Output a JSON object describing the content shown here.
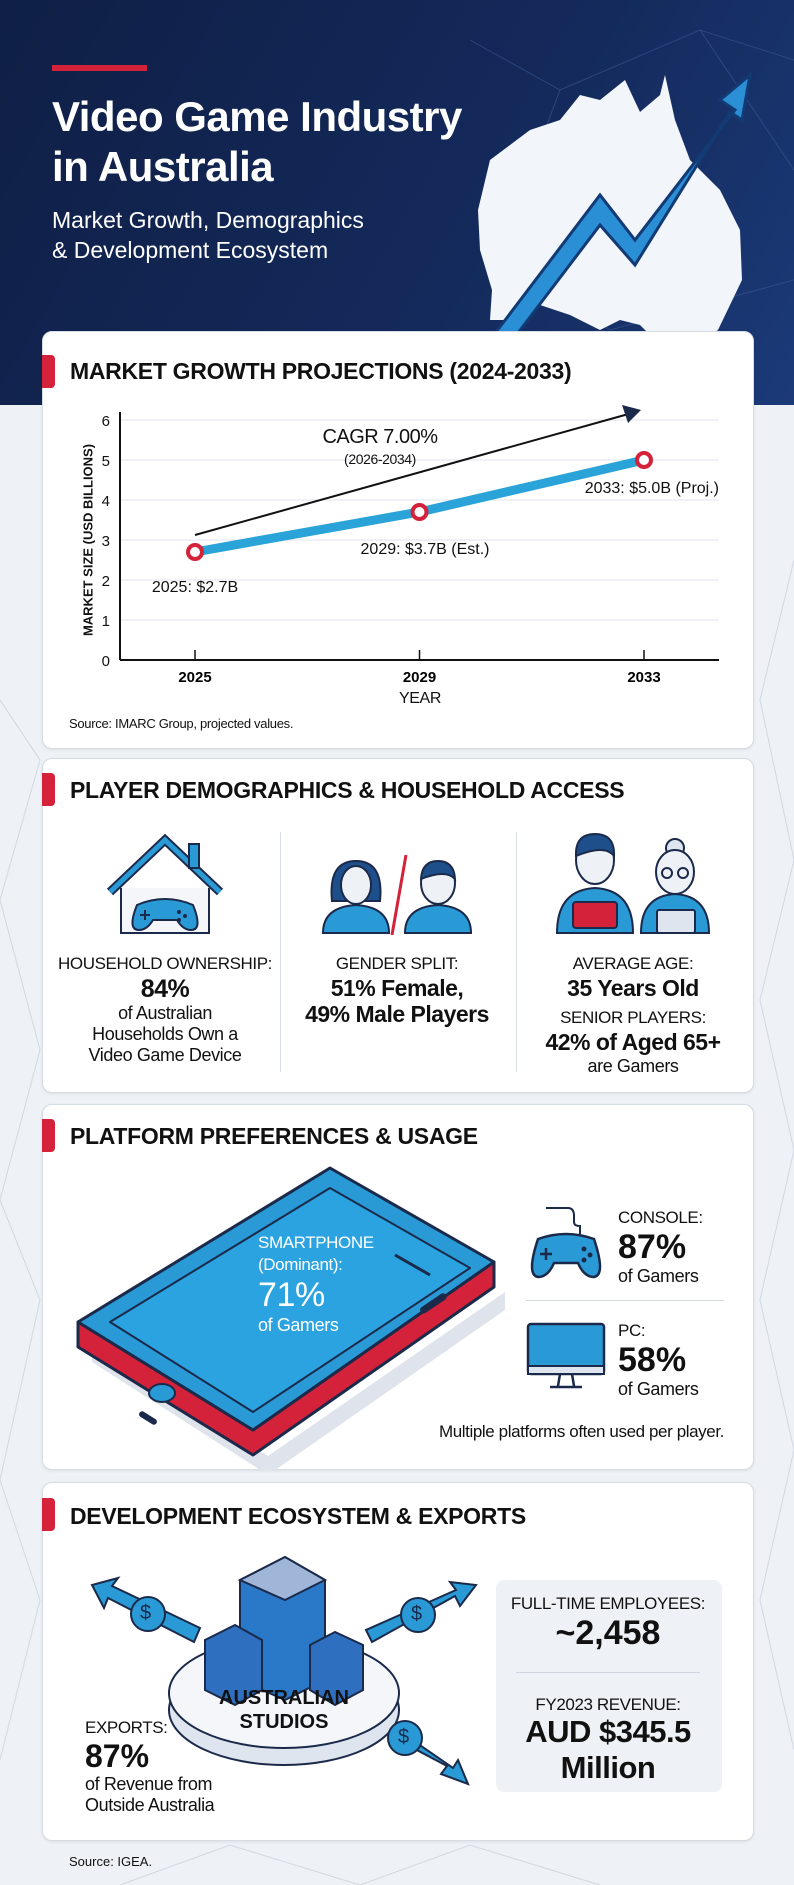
{
  "header": {
    "title_line1": "Video Game Industry",
    "title_line2": "in Australia",
    "subtitle_line1": "Market Growth, Demographics",
    "subtitle_line2": "& Development Ecosystem"
  },
  "colors": {
    "navy": "#132a5c",
    "accent_red": "#d3223a",
    "accent_blue": "#1e9ad6",
    "outline": "#1b2a4a"
  },
  "market": {
    "title": "MARKET GROWTH PROJECTIONS (2024-2033)",
    "source": "Source: IMARC Group, projected values."
  },
  "chart_data": {
    "type": "line",
    "title": "MARKET GROWTH PROJECTIONS (2024-2033)",
    "xlabel": "YEAR",
    "ylabel": "MARKET SIZE (USD BILLIONS)",
    "x": [
      2025,
      2029,
      2033
    ],
    "values": [
      2.7,
      3.7,
      5.0
    ],
    "point_labels": [
      "2025: $2.7B",
      "2029: $3.7B (Est.)",
      "2033: $5.0B (Proj.)"
    ],
    "xticks": [
      "2025",
      "2029",
      "2033"
    ],
    "yticks": [
      0,
      1,
      2,
      3,
      4,
      5,
      6
    ],
    "ylim": [
      0,
      6
    ],
    "grid": true,
    "annotation": {
      "label": "CAGR 7.00%",
      "sublabel": "(2026-2034)"
    },
    "line_color": "#2aa3d8",
    "marker_color": "#d3223a"
  },
  "demographics": {
    "title": "PLAYER DEMOGRAPHICS & HOUSEHOLD ACCESS",
    "household": {
      "label": "HOUSEHOLD OWNERSHIP:",
      "value": "84%",
      "desc1": "of Australian",
      "desc2": "Households Own a",
      "desc3": "Video Game Device"
    },
    "gender": {
      "label": "GENDER SPLIT:",
      "line1": "51% Female,",
      "line2": "49% Male Players"
    },
    "age": {
      "label": "AVERAGE AGE:",
      "value": "35 Years Old",
      "senior_label": "SENIOR PLAYERS:",
      "senior_value": "42% of Aged 65+",
      "senior_desc": "are Gamers"
    }
  },
  "platforms": {
    "title": "PLATFORM PREFERENCES & USAGE",
    "smartphone": {
      "label1": "SMARTPHONE",
      "label2": "(Dominant):",
      "value": "71%",
      "desc": "of Gamers"
    },
    "console": {
      "label": "CONSOLE:",
      "value": "87%",
      "desc": "of Gamers"
    },
    "pc": {
      "label": "PC:",
      "value": "58%",
      "desc": "of Gamers"
    },
    "note": "Multiple platforms often used per player."
  },
  "development": {
    "title": "DEVELOPMENT ECOSYSTEM & EXPORTS",
    "studios_line1": "AUSTRALIAN",
    "studios_line2": "STUDIOS",
    "exports": {
      "label": "EXPORTS:",
      "value": "87%",
      "desc1": "of Revenue from",
      "desc2": "Outside Australia"
    },
    "employees": {
      "label": "FULL-TIME EMPLOYEES:",
      "value": "~2,458"
    },
    "revenue": {
      "label": "FY2023 REVENUE:",
      "value1": "AUD $345.5",
      "value2": "Million"
    },
    "dollar_symbol": "$"
  },
  "source": "Source: IGEA."
}
